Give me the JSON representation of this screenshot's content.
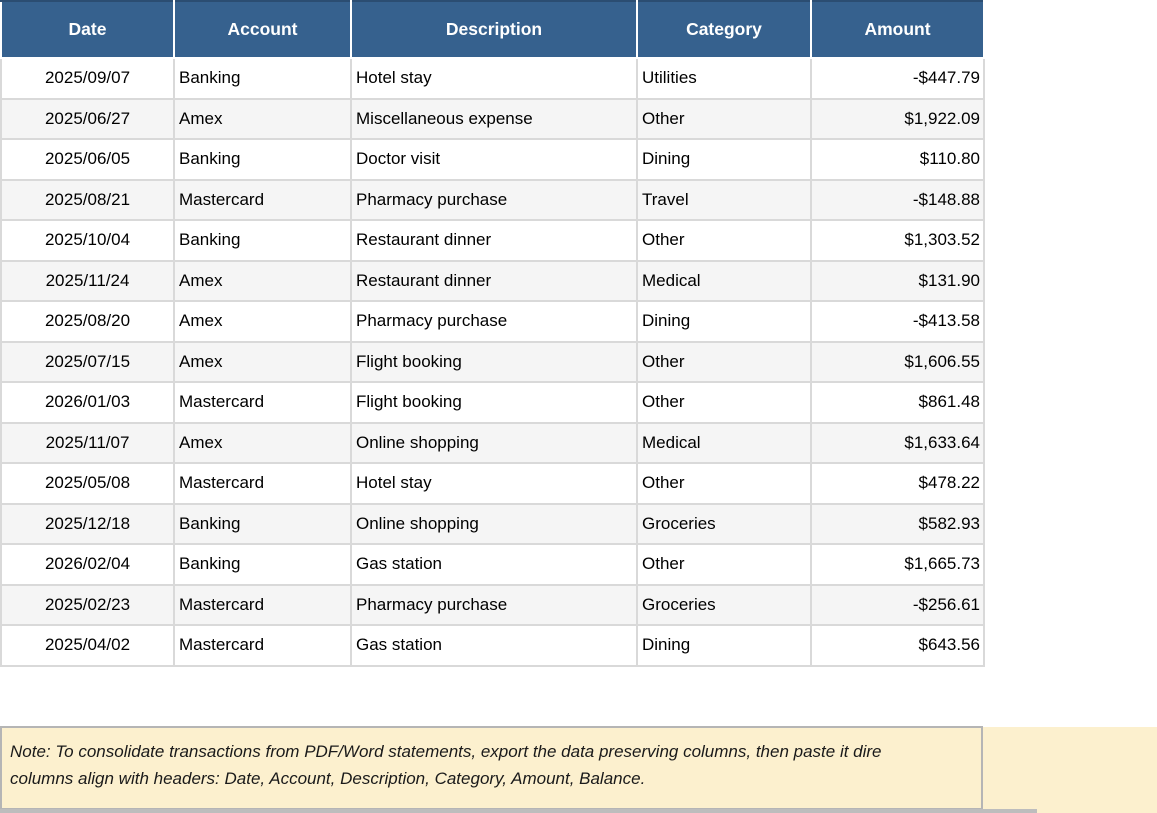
{
  "table": {
    "columns": [
      {
        "label": "Date"
      },
      {
        "label": "Account"
      },
      {
        "label": "Description"
      },
      {
        "label": "Category"
      },
      {
        "label": "Amount"
      }
    ],
    "rows": [
      {
        "date": "2025/09/07",
        "account": "Banking",
        "description": "Hotel stay",
        "category": "Utilities",
        "amount": "-$447.79"
      },
      {
        "date": "2025/06/27",
        "account": "Amex",
        "description": "Miscellaneous expense",
        "category": "Other",
        "amount": "$1,922.09"
      },
      {
        "date": "2025/06/05",
        "account": "Banking",
        "description": "Doctor visit",
        "category": "Dining",
        "amount": "$110.80"
      },
      {
        "date": "2025/08/21",
        "account": "Mastercard",
        "description": "Pharmacy purchase",
        "category": "Travel",
        "amount": "-$148.88"
      },
      {
        "date": "2025/10/04",
        "account": "Banking",
        "description": "Restaurant dinner",
        "category": "Other",
        "amount": "$1,303.52"
      },
      {
        "date": "2025/11/24",
        "account": "Amex",
        "description": "Restaurant dinner",
        "category": "Medical",
        "amount": "$131.90"
      },
      {
        "date": "2025/08/20",
        "account": "Amex",
        "description": "Pharmacy purchase",
        "category": "Dining",
        "amount": "-$413.58"
      },
      {
        "date": "2025/07/15",
        "account": "Amex",
        "description": "Flight booking",
        "category": "Other",
        "amount": "$1,606.55"
      },
      {
        "date": "2026/01/03",
        "account": "Mastercard",
        "description": "Flight booking",
        "category": "Other",
        "amount": "$861.48"
      },
      {
        "date": "2025/11/07",
        "account": "Amex",
        "description": "Online shopping",
        "category": "Medical",
        "amount": "$1,633.64"
      },
      {
        "date": "2025/05/08",
        "account": "Mastercard",
        "description": "Hotel stay",
        "category": "Other",
        "amount": "$478.22"
      },
      {
        "date": "2025/12/18",
        "account": "Banking",
        "description": "Online shopping",
        "category": "Groceries",
        "amount": "$582.93"
      },
      {
        "date": "2026/02/04",
        "account": "Banking",
        "description": "Gas station",
        "category": "Other",
        "amount": "$1,665.73"
      },
      {
        "date": "2025/02/23",
        "account": "Mastercard",
        "description": "Pharmacy purchase",
        "category": "Groceries",
        "amount": "-$256.61"
      },
      {
        "date": "2025/04/02",
        "account": "Mastercard",
        "description": "Gas station",
        "category": "Dining",
        "amount": "$643.56"
      }
    ]
  },
  "note": {
    "line1": "Note: To consolidate transactions from PDF/Word statements, export the data preserving columns, then paste it dire",
    "line2": "columns align with headers: Date, Account, Description, Category, Amount, Balance."
  },
  "colors": {
    "header_bg": "#36618E",
    "header_text": "#FFFFFF",
    "row_alt_bg": "#F5F5F5",
    "grid_border": "#D9D9D9",
    "outer_shadow": "#B3B3B3",
    "note_bg": "#FCF0CE",
    "note_border": "#B5B5B5",
    "note_text": "#1A1A1A"
  }
}
